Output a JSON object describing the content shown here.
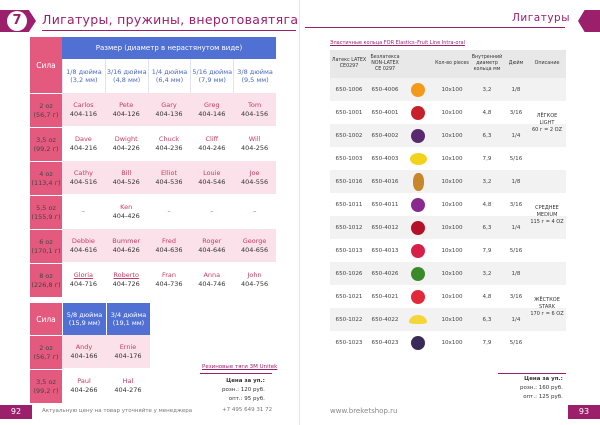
{
  "left": {
    "chapter_num": "7",
    "title": "Лигатуры, пружины, внеротоваятяга",
    "table1": {
      "sila_label": "Сила",
      "size_header": "Размер (диаметр в нерастянутом виде)",
      "sizes": [
        "1/8 дюйма (3,2 мм)",
        "3/16 дюйма (4,8 мм)",
        "1/4 дюйма (6,4 мм)",
        "5/16 дюйма (7,9 мм)",
        "3/8 дюйма (9,5 мм)"
      ],
      "rows": [
        {
          "force": "2 oz\n(56,7 г)",
          "cells": [
            [
              "Carlos",
              "404-116"
            ],
            [
              "Pete",
              "404-126"
            ],
            [
              "Gary",
              "404-136"
            ],
            [
              "Greg",
              "404-146"
            ],
            [
              "Tom",
              "404-156"
            ]
          ]
        },
        {
          "force": "3,5 oz\n(99,2 г)",
          "cells": [
            [
              "Dave",
              "404-216"
            ],
            [
              "Dwight",
              "404-226"
            ],
            [
              "Chuck",
              "404-236"
            ],
            [
              "Cliff",
              "404-246"
            ],
            [
              "Will",
              "404-256"
            ]
          ]
        },
        {
          "force": "4 oz\n(113,4 г)",
          "cells": [
            [
              "Cathy",
              "404-516"
            ],
            [
              "Bill",
              "404-526"
            ],
            [
              "Elliot",
              "404-536"
            ],
            [
              "Louie",
              "404-546"
            ],
            [
              "Joe",
              "404-556"
            ]
          ]
        },
        {
          "force": "5,5 oz\n(155,9 г)",
          "cells": [
            [
              "–",
              ""
            ],
            [
              "Ken",
              "404-426"
            ],
            [
              "–",
              ""
            ],
            [
              "–",
              ""
            ],
            [
              "–",
              ""
            ]
          ]
        },
        {
          "force": "6 oz\n(170,1 г)",
          "cells": [
            [
              "Debbie",
              "404-616"
            ],
            [
              "Bummer",
              "404-626"
            ],
            [
              "Fred",
              "404-636"
            ],
            [
              "Roger",
              "404-646"
            ],
            [
              "George",
              "404-656"
            ]
          ]
        },
        {
          "force": "8 oz\n(226,8 г)",
          "cells": [
            [
              "Gloria",
              "404-716"
            ],
            [
              "Roberto",
              "404-726"
            ],
            [
              "Fran",
              "404-736"
            ],
            [
              "Anna",
              "404-746"
            ],
            [
              "John",
              "404-756"
            ]
          ]
        }
      ]
    },
    "table2": {
      "sila_label": "Сила",
      "sizes": [
        "5/8 дюйма (15,9 мм)",
        "3/4 дюйма (19,1 мм)"
      ],
      "rows": [
        {
          "force": "2 oz\n(56,7 г)",
          "cells": [
            [
              "Andy",
              "404-166"
            ],
            [
              "Ernie",
              "404-176"
            ]
          ]
        },
        {
          "force": "3,5 oz\n(99,2 г)",
          "cells": [
            [
              "Paul",
              "404-266"
            ],
            [
              "Hal",
              "404-276"
            ]
          ]
        }
      ]
    },
    "note": "Резиновые тяги 3M Unitek",
    "price_title": "Цена за уп.:",
    "price_retail": "розн.: 120 руб.",
    "price_wholesale": "опт.: 95 руб.",
    "page_num": "92",
    "footer": "Актуальную цену на товар уточняйте у менеджера",
    "phone": "+7 495 649 31 72"
  },
  "right": {
    "title": "Лигатуры",
    "table_title": "Эластичные кольца FOR Elastics–Fruit Line Intra-oral",
    "headers": [
      "Латекс LATEX CE0297",
      "Безлатекса NON-LATEX CE 0297",
      "",
      "Кол-во pieces",
      "Внутренний диаметр кольца мм",
      "Дюйм",
      "Описание"
    ],
    "rows": [
      {
        "latex": "650-1006",
        "nonlatex": "650-4006",
        "fruit": "orange",
        "qty": "10х100",
        "mm": "3,2",
        "inch": "1/8"
      },
      {
        "latex": "650-1001",
        "nonlatex": "650-4001",
        "fruit": "apple",
        "qty": "10х100",
        "mm": "4,8",
        "inch": "3/16"
      },
      {
        "latex": "650-1002",
        "nonlatex": "650-4002",
        "fruit": "plum",
        "qty": "10х100",
        "mm": "6,3",
        "inch": "1/4"
      },
      {
        "latex": "650-1003",
        "nonlatex": "650-4003",
        "fruit": "lemon",
        "qty": "10х100",
        "mm": "7,9",
        "inch": "5/16"
      },
      {
        "latex": "650-1016",
        "nonlatex": "650-4016",
        "fruit": "pineapple",
        "qty": "10х100",
        "mm": "3,2",
        "inch": "1/8"
      },
      {
        "latex": "650-1011",
        "nonlatex": "650-4011",
        "fruit": "grapes",
        "qty": "10х100",
        "mm": "4,8",
        "inch": "3/16"
      },
      {
        "latex": "650-1012",
        "nonlatex": "650-4012",
        "fruit": "cherry",
        "qty": "10х100",
        "mm": "6,3",
        "inch": "1/4"
      },
      {
        "latex": "650-1013",
        "nonlatex": "650-4013",
        "fruit": "raspberry",
        "qty": "10х100",
        "mm": "7,9",
        "inch": "5/16"
      },
      {
        "latex": "650-1026",
        "nonlatex": "650-4026",
        "fruit": "watermelon",
        "qty": "10х100",
        "mm": "3,2",
        "inch": "1/8"
      },
      {
        "latex": "650-1021",
        "nonlatex": "650-4021",
        "fruit": "strawberry",
        "qty": "10х100",
        "mm": "4,8",
        "inch": "3/16"
      },
      {
        "latex": "650-1022",
        "nonlatex": "650-4022",
        "fruit": "banana",
        "qty": "10х100",
        "mm": "6,3",
        "inch": "1/4"
      },
      {
        "latex": "650-1023",
        "nonlatex": "650-4023",
        "fruit": "blackberry",
        "qty": "10х100",
        "mm": "7,9",
        "inch": "5/16"
      }
    ],
    "descriptions": [
      "ЛЁГКОЕ\nLIGHT\n60 г = 2 OZ",
      "СРЕДНЕЕ\nMEDIUM\n115 г = 4 OZ",
      "ЖЁСТКОЕ\nSTARK\n170 г = 6 OZ"
    ],
    "price_title": "Цена за уп.:",
    "price_retail": "розн.: 160 руб.",
    "price_wholesale": "опт.: 125 руб.",
    "page_num": "93",
    "site": "www.breketshop.ru"
  },
  "colors": {
    "brand": "#9b1f6b",
    "pink": "#e45a7f",
    "blue": "#5070d4"
  },
  "fruit_colors": {
    "orange": "#f39a1b",
    "apple": "#c8202a",
    "plum": "#5a2a6e",
    "lemon": "#f3d21b",
    "pineapple": "#c8862a",
    "grapes": "#8a2a8e",
    "cherry": "#b5102a",
    "raspberry": "#d6204a",
    "watermelon": "#3a8a2a",
    "strawberry": "#e02a3a",
    "banana": "#f5d63a",
    "blackberry": "#3a2a5a"
  }
}
